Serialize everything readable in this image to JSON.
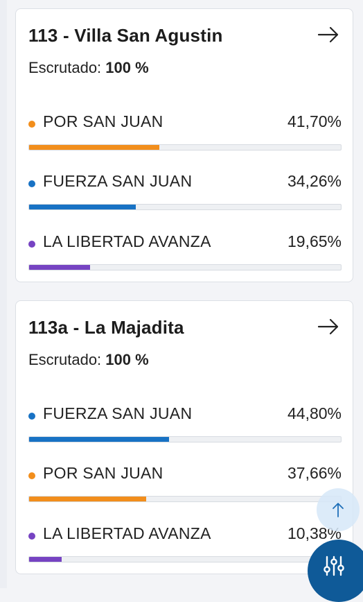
{
  "colors": {
    "orange": "#f28e1c",
    "blue": "#1872c4",
    "purple": "#7643c2",
    "fab": "#0f5a98"
  },
  "cards": [
    {
      "title": "113 - Villa San Agustin",
      "scrutiny_label": "Escrutado:",
      "scrutiny_value": "100 %",
      "arrow_icon": "arrow-right-icon",
      "rows": [
        {
          "party": "POR SAN JUAN",
          "pct": "41,70%",
          "value": 41.7,
          "color": "#f28e1c"
        },
        {
          "party": "FUERZA SAN JUAN",
          "pct": "34,26%",
          "value": 34.26,
          "color": "#1872c4"
        },
        {
          "party": "LA LIBERTAD AVANZA",
          "pct": "19,65%",
          "value": 19.65,
          "color": "#7643c2"
        }
      ]
    },
    {
      "title": "113a - La Majadita",
      "scrutiny_label": "Escrutado:",
      "scrutiny_value": "100 %",
      "arrow_icon": "arrow-right-icon",
      "rows": [
        {
          "party": "FUERZA SAN JUAN",
          "pct": "44,80%",
          "value": 44.8,
          "color": "#1872c4"
        },
        {
          "party": "POR SAN JUAN",
          "pct": "37,66%",
          "value": 37.66,
          "color": "#f28e1c"
        },
        {
          "party": "LA LIBERTAD AVANZA",
          "pct": "10,38%",
          "value": 10.38,
          "color": "#7643c2"
        }
      ]
    }
  ],
  "scroll_top": {
    "icon": "arrow-up-icon"
  },
  "filter_fab": {
    "icon": "sliders-icon"
  }
}
